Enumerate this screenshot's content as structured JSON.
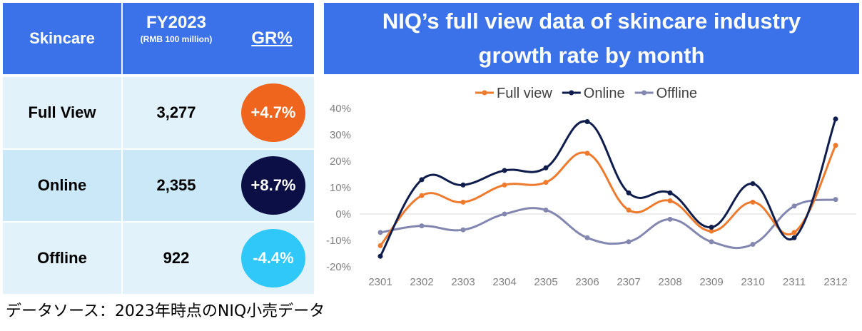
{
  "table": {
    "header": {
      "category": "Skincare",
      "fy": "FY2023",
      "fy_unit": "(RMB 100 million)",
      "gr": "GR%"
    },
    "rows": [
      {
        "category": "Full View",
        "value": "3,277",
        "growth": "+4.7%",
        "color": "#f0651e"
      },
      {
        "category": "Online",
        "value": "2,355",
        "growth": "+8.7%",
        "color": "#0c0f45"
      },
      {
        "category": "Offline",
        "value": "922",
        "growth": "-4.4%",
        "color": "#2fc8f8"
      }
    ],
    "header_color": "#3b72ea"
  },
  "source_note": "データソース：2023年時点のNIQ小売データ",
  "chart_title": "NIQ’s full view data of skincare industry growth rate by month",
  "chart_data": {
    "type": "line",
    "title": "NIQ’s full view data of skincare industry growth rate by month",
    "categories": [
      "2301",
      "2302",
      "2303",
      "2304",
      "2305",
      "2306",
      "2307",
      "2308",
      "2309",
      "2310",
      "2311",
      "2312"
    ],
    "series": [
      {
        "name": "Full view",
        "color": "#ee7a2d",
        "values": [
          -12,
          7,
          4.5,
          11,
          12,
          23,
          1.5,
          5,
          -6.5,
          4.5,
          -7,
          26
        ]
      },
      {
        "name": "Online",
        "color": "#0f1d4d",
        "values": [
          -16,
          13,
          11,
          16.5,
          17.5,
          35,
          8,
          8,
          -5,
          11.5,
          -9,
          36
        ]
      },
      {
        "name": "Offline",
        "color": "#8387b0",
        "values": [
          -7,
          -4.5,
          -6,
          0,
          1.5,
          -9,
          -10.5,
          -2,
          -10.5,
          -11.5,
          3,
          5.5
        ]
      }
    ],
    "y_ticks": [
      "40%",
      "30%",
      "20%",
      "10%",
      "0%",
      "-10%",
      "-20%"
    ],
    "ylim": [
      -20,
      40
    ],
    "xlabel": "",
    "ylabel": "",
    "legend": "top-center",
    "grid": false
  }
}
